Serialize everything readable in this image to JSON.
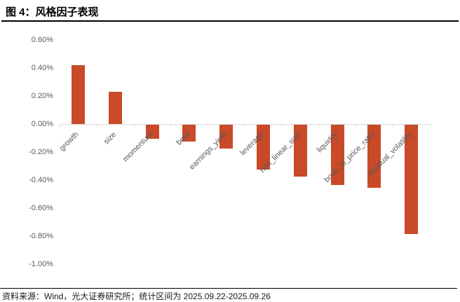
{
  "header": {
    "title": "图 4：风格因子表现"
  },
  "footer": {
    "source": "资料来源：Wind，光大证券研究所；统计区间为 2025.09.22-2025.09.26"
  },
  "chart_data": {
    "type": "bar",
    "title": "风格因子表现",
    "categories": [
      "growth",
      "size",
      "momentum",
      "beta",
      "earnings_yield",
      "leverage",
      "non_linear_size",
      "liquidity",
      "book_to_price_ratio",
      "residual_volatility"
    ],
    "values": [
      0.42,
      0.23,
      -0.1,
      -0.12,
      -0.17,
      -0.32,
      -0.37,
      -0.43,
      -0.45,
      -0.78
    ],
    "unit": "%",
    "xlabel": "",
    "ylabel": "",
    "ylim": [
      -1.0,
      0.6
    ],
    "y_tick_values": [
      0.6,
      0.4,
      0.2,
      0.0,
      -0.2,
      -0.4,
      -0.6,
      -0.8,
      -1.0
    ],
    "y_tick_labels": [
      "0.60%",
      "0.40%",
      "0.20%",
      "0.00%",
      "-0.20%",
      "-0.40%",
      "-0.60%",
      "-0.80%",
      "-1.00%"
    ],
    "grid": false,
    "legend": "none",
    "colors": {
      "bar": "#C84A28",
      "axis": "#D9D9D9",
      "tick_label": "#595959"
    }
  }
}
